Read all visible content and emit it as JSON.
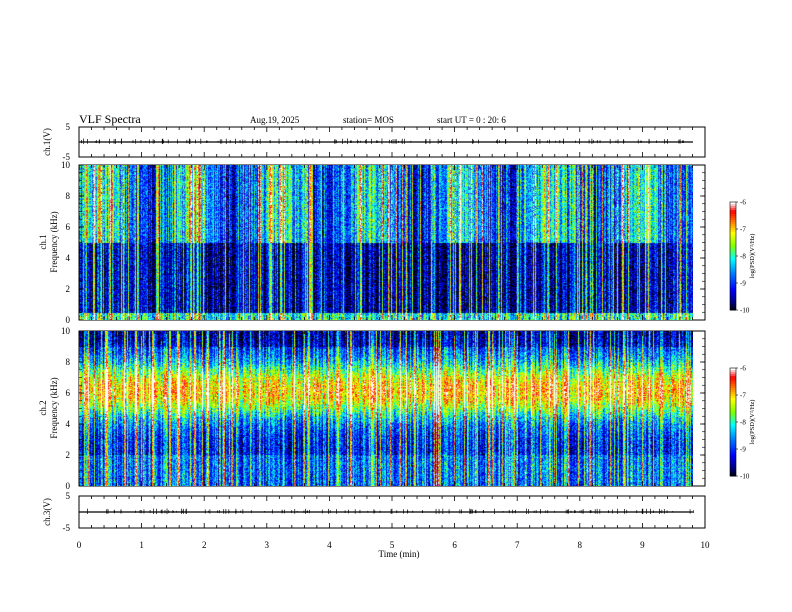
{
  "header": {
    "title": "VLF Spectra",
    "date": "Aug.19, 2025",
    "station": "station= MOS",
    "start_ut": "start  UT =   0 : 20: 6"
  },
  "chart_data": [
    {
      "type": "line",
      "panel": "ch1-waveform",
      "ylabel": "ch.1(V)",
      "ylim": [
        -5,
        5
      ],
      "yticks": [
        "5",
        "-5"
      ],
      "xlim": [
        0,
        10
      ],
      "series": [
        {
          "x": [
            0,
            9.85
          ],
          "y": [
            0,
            0
          ]
        }
      ]
    },
    {
      "type": "heatmap",
      "panel": "ch1-spectrogram",
      "ylabel": "ch.1\nFrequency (kHz)",
      "ylim": [
        0,
        10
      ],
      "yticks": [
        "0",
        "2",
        "4",
        "6",
        "8",
        "10"
      ],
      "xlim": [
        0,
        10
      ],
      "data_xmax": 9.85,
      "colorbar": {
        "label": "log(PSD)(V²/Hz)",
        "range": [
          -10,
          -6
        ],
        "ticks": [
          "-6",
          "-7",
          "-8",
          "-9",
          "-10"
        ]
      }
    },
    {
      "type": "heatmap",
      "panel": "ch2-spectrogram",
      "ylabel": "ch.2\nFrequency (kHz)",
      "ylim": [
        0,
        10
      ],
      "yticks": [
        "0",
        "2",
        "4",
        "6",
        "8",
        "10"
      ],
      "xlim": [
        0,
        10
      ],
      "data_xmax": 9.85,
      "colorbar": {
        "label": "log(PSD)(V²/Hz)",
        "range": [
          -10,
          -6
        ],
        "ticks": [
          "-6",
          "-7",
          "-8",
          "-9",
          "-10"
        ]
      }
    },
    {
      "type": "line",
      "panel": "ch3-waveform",
      "ylabel": "ch.3(V)",
      "ylim": [
        -5,
        5
      ],
      "yticks": [
        "5",
        "-5"
      ],
      "xlim": [
        0,
        10
      ],
      "series": [
        {
          "x": [
            0,
            9.85
          ],
          "y": [
            0,
            0
          ]
        }
      ]
    }
  ],
  "xaxis": {
    "label": "Time  (min)",
    "ticks": [
      "0",
      "1",
      "2",
      "3",
      "4",
      "5",
      "6",
      "7",
      "8",
      "9",
      "10"
    ]
  },
  "colors": {
    "background": "#000000",
    "colormap": [
      "#000000",
      "#00007f",
      "#0000ff",
      "#007fff",
      "#00ffff",
      "#7fff00",
      "#ffff00",
      "#ff7f00",
      "#ff0000",
      "#ffffff"
    ]
  }
}
